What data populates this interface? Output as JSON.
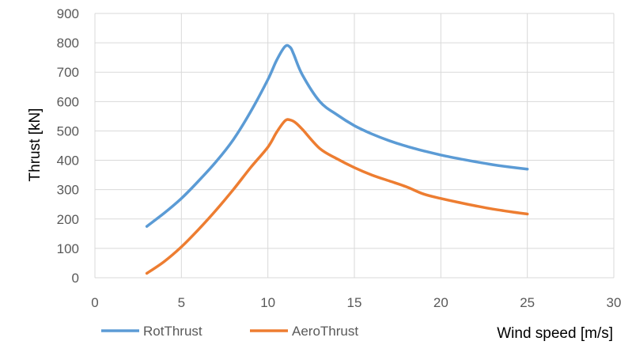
{
  "chart_data": {
    "type": "line",
    "xlabel": "Wind speed [m/s]",
    "ylabel": "Thrust [kN]",
    "xlim": [
      0,
      30
    ],
    "ylim": [
      0,
      900
    ],
    "xticks": [
      0,
      5,
      10,
      15,
      20,
      25,
      30
    ],
    "yticks": [
      0,
      100,
      200,
      300,
      400,
      500,
      600,
      700,
      800,
      900
    ],
    "grid": true,
    "legend_position": "bottom-left",
    "series": [
      {
        "name": "RotThrust",
        "color": "#5b9bd5",
        "x": [
          3,
          4,
          5,
          6,
          7,
          8,
          9,
          10,
          10.5,
          11,
          11.3,
          11.5,
          12,
          13,
          14,
          15,
          16,
          17,
          18,
          19,
          20,
          21,
          22,
          23,
          24,
          25
        ],
        "y": [
          175,
          220,
          270,
          330,
          395,
          470,
          565,
          675,
          740,
          788,
          784,
          760,
          690,
          600,
          555,
          518,
          490,
          467,
          448,
          432,
          418,
          406,
          395,
          385,
          377,
          370
        ]
      },
      {
        "name": "AeroThrust",
        "color": "#ed7d31",
        "x": [
          3,
          4,
          5,
          6,
          7,
          8,
          9,
          10,
          10.5,
          11,
          11.3,
          11.6,
          12,
          13,
          14,
          15,
          16,
          17,
          18,
          19,
          20,
          21,
          22,
          23,
          24,
          25
        ],
        "y": [
          15,
          55,
          105,
          165,
          230,
          300,
          375,
          445,
          495,
          535,
          537,
          528,
          505,
          440,
          405,
          375,
          350,
          330,
          310,
          285,
          270,
          257,
          245,
          234,
          225,
          217
        ]
      }
    ]
  }
}
